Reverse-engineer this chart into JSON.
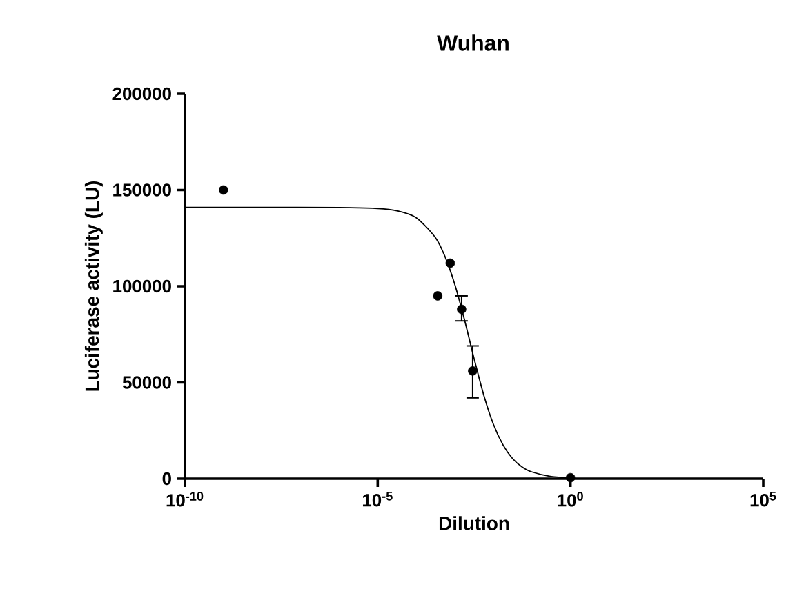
{
  "chart_data": {
    "type": "scatter",
    "title": "Wuhan",
    "xlabel": "Dilution",
    "ylabel": "Luciferase activity (LU)",
    "log": "x",
    "xlim": [
      1e-10,
      100000
    ],
    "ylim": [
      0,
      200000
    ],
    "xticks": [
      {
        "value": 1e-10,
        "label": "10$^{-10}$"
      },
      {
        "value": 1e-05,
        "label": "10$^{-5}$"
      },
      {
        "value": 1,
        "label": "10$^{0}$"
      },
      {
        "value": 100000,
        "label": "10$^{5}$"
      }
    ],
    "yticks": [
      0,
      50000,
      100000,
      150000,
      200000
    ],
    "grid": false,
    "series": [
      {
        "color": "#000000",
        "marker": "circle",
        "x": [
          1e-09,
          0.00036,
          0.00076,
          0.0015,
          0.0029,
          1
        ],
        "values": [
          150000,
          95000,
          112000,
          88000,
          56000,
          500
        ],
        "errors": [
          null,
          null,
          null,
          [
            82000,
            95000
          ],
          [
            42000,
            69000
          ],
          null
        ]
      },
      {
        "type": "line",
        "color": "#000000",
        "marker": "none",
        "line_style": "solid",
        "x": [
          1e-10,
          1e-08,
          1e-06,
          1e-05,
          3.16e-05,
          0.0001,
          0.000316,
          0.000562,
          0.001,
          0.00178,
          0.00316,
          0.00562,
          0.01,
          0.0178,
          0.0316,
          0.0562,
          0.1,
          0.316,
          1
        ],
        "values": [
          141000,
          141000,
          140900,
          140400,
          139200,
          135600,
          125200,
          115200,
          100900,
          82600,
          62400,
          43500,
          28300,
          17500,
          10400,
          6000,
          3500,
          1100,
          400
        ]
      }
    ]
  }
}
